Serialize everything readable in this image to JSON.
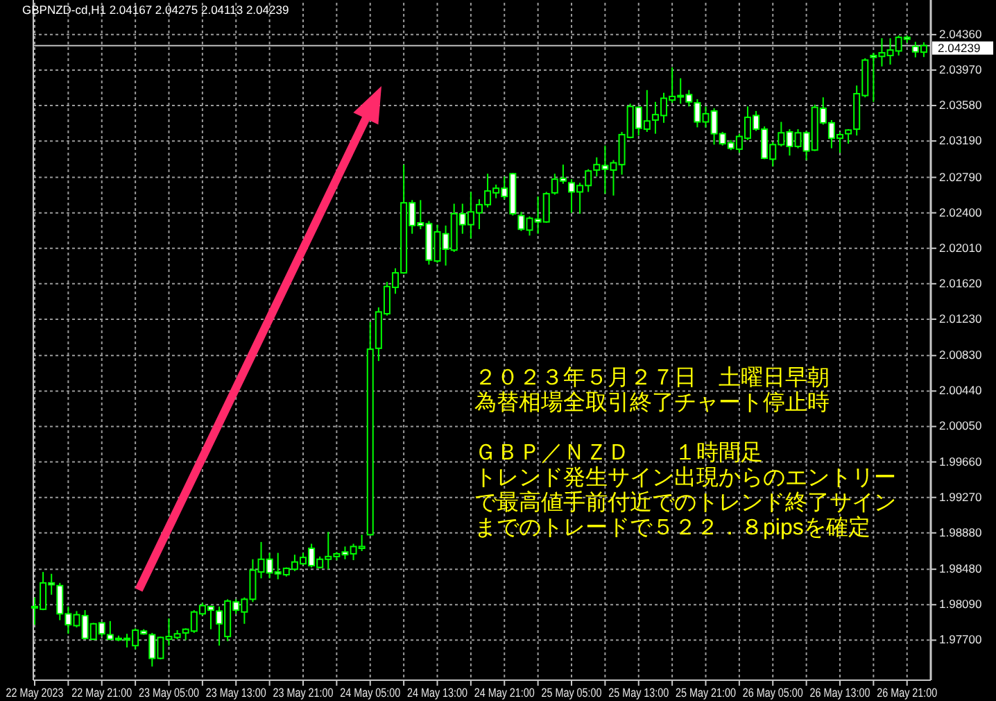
{
  "chart_data": {
    "type": "candlestick",
    "title": "GBPNZD-cd,H1  2.04167 2.04275 2.04113 2.04239",
    "color": "#00ff00",
    "x": [
      "2023-05-22T13:00",
      "2023-05-22T14:00",
      "2023-05-22T15:00",
      "2023-05-22T16:00",
      "2023-05-22T17:00",
      "2023-05-22T18:00",
      "2023-05-22T19:00",
      "2023-05-22T20:00",
      "2023-05-22T21:00",
      "2023-05-22T22:00",
      "2023-05-22T23:00",
      "2023-05-23T00:00",
      "2023-05-23T01:00",
      "2023-05-23T02:00",
      "2023-05-23T03:00",
      "2023-05-23T04:00",
      "2023-05-23T05:00",
      "2023-05-23T06:00",
      "2023-05-23T07:00",
      "2023-05-23T08:00",
      "2023-05-23T09:00",
      "2023-05-23T10:00",
      "2023-05-23T11:00",
      "2023-05-23T12:00",
      "2023-05-23T13:00",
      "2023-05-23T14:00",
      "2023-05-23T15:00",
      "2023-05-23T16:00",
      "2023-05-23T17:00",
      "2023-05-23T18:00",
      "2023-05-23T19:00",
      "2023-05-23T20:00",
      "2023-05-23T21:00",
      "2023-05-23T22:00",
      "2023-05-23T23:00",
      "2023-05-24T00:00",
      "2023-05-24T01:00",
      "2023-05-24T02:00",
      "2023-05-24T03:00",
      "2023-05-24T04:00",
      "2023-05-24T05:00",
      "2023-05-24T06:00",
      "2023-05-24T07:00",
      "2023-05-24T08:00",
      "2023-05-24T09:00",
      "2023-05-24T10:00",
      "2023-05-24T11:00",
      "2023-05-24T12:00",
      "2023-05-24T13:00",
      "2023-05-24T14:00",
      "2023-05-24T15:00",
      "2023-05-24T16:00",
      "2023-05-24T17:00",
      "2023-05-24T18:00",
      "2023-05-24T19:00",
      "2023-05-24T20:00",
      "2023-05-24T21:00",
      "2023-05-24T22:00",
      "2023-05-24T23:00",
      "2023-05-25T00:00",
      "2023-05-25T01:00",
      "2023-05-25T02:00",
      "2023-05-25T03:00",
      "2023-05-25T04:00",
      "2023-05-25T05:00",
      "2023-05-25T06:00",
      "2023-05-25T07:00",
      "2023-05-25T08:00",
      "2023-05-25T09:00",
      "2023-05-25T10:00",
      "2023-05-25T11:00",
      "2023-05-25T12:00",
      "2023-05-25T13:00",
      "2023-05-25T14:00",
      "2023-05-25T15:00",
      "2023-05-25T16:00",
      "2023-05-25T17:00",
      "2023-05-25T18:00",
      "2023-05-25T19:00",
      "2023-05-25T20:00",
      "2023-05-25T21:00",
      "2023-05-25T22:00",
      "2023-05-25T23:00",
      "2023-05-26T00:00",
      "2023-05-26T01:00",
      "2023-05-26T02:00",
      "2023-05-26T03:00",
      "2023-05-26T04:00",
      "2023-05-26T05:00",
      "2023-05-26T06:00",
      "2023-05-26T07:00",
      "2023-05-26T08:00",
      "2023-05-26T09:00",
      "2023-05-26T10:00",
      "2023-05-26T11:00",
      "2023-05-26T12:00",
      "2023-05-26T13:00",
      "2023-05-26T14:00",
      "2023-05-26T15:00",
      "2023-05-26T16:00",
      "2023-05-26T17:00",
      "2023-05-26T18:00",
      "2023-05-26T19:00",
      "2023-05-26T20:00",
      "2023-05-26T21:00",
      "2023-05-26T22:00",
      "2023-05-26T23:00"
    ],
    "ohlc": [
      [
        1.9807,
        1.9817,
        1.9787,
        1.9807
      ],
      [
        1.9804,
        1.9845,
        1.9803,
        1.9833
      ],
      [
        1.9833,
        1.9843,
        1.982,
        1.9831
      ],
      [
        1.983,
        1.9833,
        1.9792,
        1.9799
      ],
      [
        1.9799,
        1.9807,
        1.9777,
        1.9787
      ],
      [
        1.9786,
        1.9802,
        1.9784,
        1.9798
      ],
      [
        1.9797,
        1.9803,
        1.9771,
        1.9772
      ],
      [
        1.9771,
        1.9789,
        1.977,
        1.9788
      ],
      [
        1.9789,
        1.979,
        1.9774,
        1.9777
      ],
      [
        1.9776,
        1.9791,
        1.977,
        1.9771
      ],
      [
        1.9772,
        1.9775,
        1.9769,
        1.9771
      ],
      [
        1.9772,
        1.9777,
        1.9762,
        1.9771
      ],
      [
        1.9764,
        1.9783,
        1.976,
        1.9781
      ],
      [
        1.978,
        1.9782,
        1.9776,
        1.9777
      ],
      [
        1.9776,
        1.9778,
        1.9741,
        1.975
      ],
      [
        1.975,
        1.9774,
        1.9749,
        1.9773
      ],
      [
        1.9771,
        1.9794,
        1.9764,
        1.9774
      ],
      [
        1.9773,
        1.9781,
        1.9771,
        1.9777
      ],
      [
        1.9778,
        1.9783,
        1.977,
        1.9782
      ],
      [
        1.978,
        1.9803,
        1.9778,
        1.9801
      ],
      [
        1.9799,
        1.9811,
        1.9797,
        1.9808
      ],
      [
        1.9807,
        1.9808,
        1.9782,
        1.9803
      ],
      [
        1.9802,
        1.9807,
        1.9764,
        1.9788
      ],
      [
        1.9774,
        1.9815,
        1.9769,
        1.9813
      ],
      [
        1.9812,
        1.9815,
        1.9799,
        1.9803
      ],
      [
        1.9801,
        1.9817,
        1.9788,
        1.9815
      ],
      [
        1.9815,
        1.9859,
        1.9812,
        1.9847
      ],
      [
        1.9845,
        1.9878,
        1.9838,
        1.9859
      ],
      [
        1.9859,
        1.9866,
        1.9838,
        1.9844
      ],
      [
        1.9845,
        1.9866,
        1.9837,
        1.9843
      ],
      [
        1.9842,
        1.985,
        1.984,
        1.9849
      ],
      [
        1.9848,
        1.9864,
        1.9846,
        1.9856
      ],
      [
        1.9854,
        1.9866,
        1.9853,
        1.9861
      ],
      [
        1.9871,
        1.9876,
        1.985,
        1.9852
      ],
      [
        1.985,
        1.9862,
        1.9849,
        1.9859
      ],
      [
        1.9859,
        1.9889,
        1.9848,
        1.9862
      ],
      [
        1.9862,
        1.9867,
        1.9858,
        1.9865
      ],
      [
        1.9867,
        1.9873,
        1.9859,
        1.9864
      ],
      [
        1.9865,
        1.9876,
        1.9858,
        1.9873
      ],
      [
        1.9871,
        1.9886,
        1.9868,
        1.9873
      ],
      [
        1.9886,
        2.012,
        1.9885,
        2.009
      ],
      [
        2.0091,
        2.0136,
        2.0077,
        2.0131
      ],
      [
        2.0129,
        2.0164,
        2.0127,
        2.0159
      ],
      [
        2.0158,
        2.0179,
        2.0151,
        2.0174
      ],
      [
        2.0174,
        2.0293,
        2.0173,
        2.0251
      ],
      [
        2.0251,
        2.0254,
        2.0217,
        2.0226
      ],
      [
        2.0229,
        2.0254,
        2.0222,
        2.0226
      ],
      [
        2.0228,
        2.0231,
        2.0183,
        2.0188
      ],
      [
        2.0187,
        2.0227,
        2.0185,
        2.0219
      ],
      [
        2.0217,
        2.0226,
        2.0182,
        2.02
      ],
      [
        2.0199,
        2.025,
        2.0197,
        2.0239
      ],
      [
        2.0239,
        2.025,
        2.0217,
        2.0227
      ],
      [
        2.0227,
        2.0263,
        2.0212,
        2.0241
      ],
      [
        2.024,
        2.0255,
        2.0222,
        2.0249
      ],
      [
        2.0249,
        2.0283,
        2.0246,
        2.0264
      ],
      [
        2.0262,
        2.0271,
        2.0256,
        2.0267
      ],
      [
        2.0267,
        2.028,
        2.0255,
        2.0258
      ],
      [
        2.0283,
        2.0284,
        2.0237,
        2.0239
      ],
      [
        2.0237,
        2.0241,
        2.022,
        2.0222
      ],
      [
        2.0221,
        2.0236,
        2.0215,
        2.0234
      ],
      [
        2.0233,
        2.0258,
        2.0217,
        2.023
      ],
      [
        2.023,
        2.0263,
        2.0229,
        2.0261
      ],
      [
        2.0262,
        2.0283,
        2.026,
        2.0277
      ],
      [
        2.0278,
        2.0293,
        2.0272,
        2.0275
      ],
      [
        2.0273,
        2.0277,
        2.024,
        2.0263
      ],
      [
        2.0263,
        2.0273,
        2.0239,
        2.027
      ],
      [
        2.027,
        2.0288,
        2.0263,
        2.0286
      ],
      [
        2.0287,
        2.0301,
        2.028,
        2.0293
      ],
      [
        2.0292,
        2.0314,
        2.0261,
        2.0288
      ],
      [
        2.0287,
        2.0298,
        2.0259,
        2.0295
      ],
      [
        2.0293,
        2.0329,
        2.0282,
        2.0326
      ],
      [
        2.0323,
        2.036,
        2.0322,
        2.0357
      ],
      [
        2.0356,
        2.0357,
        2.0325,
        2.0333
      ],
      [
        2.0332,
        2.0375,
        2.0329,
        2.0341
      ],
      [
        2.0342,
        2.0362,
        2.0327,
        2.0348
      ],
      [
        2.0347,
        2.0372,
        2.0339,
        2.0366
      ],
      [
        2.0364,
        2.04,
        2.0361,
        2.0368
      ],
      [
        2.0369,
        2.0388,
        2.036,
        2.0369
      ],
      [
        2.037,
        2.0375,
        2.0357,
        2.0362
      ],
      [
        2.0361,
        2.0365,
        2.0334,
        2.034
      ],
      [
        2.034,
        2.0357,
        2.0334,
        2.0349
      ],
      [
        2.0352,
        2.0355,
        2.0315,
        2.0327
      ],
      [
        2.0327,
        2.0329,
        2.0314,
        2.0316
      ],
      [
        2.0317,
        2.032,
        2.0309,
        2.0311
      ],
      [
        2.031,
        2.0327,
        2.0306,
        2.0324
      ],
      [
        2.0322,
        2.0357,
        2.032,
        2.0345
      ],
      [
        2.0347,
        2.0352,
        2.033,
        2.0332
      ],
      [
        2.0332,
        2.0335,
        2.0299,
        2.03
      ],
      [
        2.0299,
        2.0318,
        2.0291,
        2.0315
      ],
      [
        2.0315,
        2.034,
        2.0313,
        2.0328
      ],
      [
        2.0329,
        2.0332,
        2.0303,
        2.0313
      ],
      [
        2.0313,
        2.0332,
        2.0311,
        2.0328
      ],
      [
        2.0328,
        2.033,
        2.0298,
        2.0308
      ],
      [
        2.0309,
        2.0359,
        2.0308,
        2.0356
      ],
      [
        2.0355,
        2.0367,
        2.0337,
        2.0339
      ],
      [
        2.0339,
        2.0342,
        2.0311,
        2.0322
      ],
      [
        2.0322,
        2.0329,
        2.0306,
        2.0326
      ],
      [
        2.0327,
        2.0332,
        2.0316,
        2.0331
      ],
      [
        2.0332,
        2.038,
        2.0325,
        2.0371
      ],
      [
        2.0369,
        2.041,
        2.0367,
        2.0408
      ],
      [
        2.0413,
        2.0416,
        2.0362,
        2.0411
      ],
      [
        2.0412,
        2.0432,
        2.0401,
        2.0416
      ],
      [
        2.0413,
        2.0432,
        2.0403,
        2.0419
      ],
      [
        2.0418,
        2.0435,
        2.0413,
        2.0433
      ],
      [
        2.0433,
        2.0435,
        2.0427,
        2.0431
      ],
      [
        2.0423,
        2.0428,
        2.0411,
        2.0417
      ],
      [
        2.04167,
        2.04275,
        2.04113,
        2.04239
      ]
    ],
    "xlim": [
      "2023-05-22T12:50",
      "2023-05-26T23:50"
    ],
    "xticks": [
      {
        "value": "2023-05-22T13:00",
        "label": "22 May 2023"
      },
      {
        "value": "2023-05-22T17:00",
        "label": null
      },
      {
        "value": "2023-05-22T21:00",
        "label": "22 May 21:00"
      },
      {
        "value": "2023-05-23T01:00",
        "label": null
      },
      {
        "value": "2023-05-23T05:00",
        "label": "23 May 05:00"
      },
      {
        "value": "2023-05-23T09:00",
        "label": null
      },
      {
        "value": "2023-05-23T13:00",
        "label": "23 May 13:00"
      },
      {
        "value": "2023-05-23T17:00",
        "label": null
      },
      {
        "value": "2023-05-23T21:00",
        "label": "23 May 21:00"
      },
      {
        "value": "2023-05-24T01:00",
        "label": null
      },
      {
        "value": "2023-05-24T05:00",
        "label": "24 May 05:00"
      },
      {
        "value": "2023-05-24T09:00",
        "label": null
      },
      {
        "value": "2023-05-24T13:00",
        "label": "24 May 13:00"
      },
      {
        "value": "2023-05-24T17:00",
        "label": null
      },
      {
        "value": "2023-05-24T21:00",
        "label": "24 May 21:00"
      },
      {
        "value": "2023-05-25T01:00",
        "label": null
      },
      {
        "value": "2023-05-25T05:00",
        "label": "25 May 05:00"
      },
      {
        "value": "2023-05-25T09:00",
        "label": null
      },
      {
        "value": "2023-05-25T13:00",
        "label": "25 May 13:00"
      },
      {
        "value": "2023-05-25T17:00",
        "label": null
      },
      {
        "value": "2023-05-25T21:00",
        "label": "25 May 21:00"
      },
      {
        "value": "2023-05-26T01:00",
        "label": null
      },
      {
        "value": "2023-05-26T05:00",
        "label": "26 May 05:00"
      },
      {
        "value": "2023-05-26T09:00",
        "label": null
      },
      {
        "value": "2023-05-26T13:00",
        "label": "26 May 13:00"
      },
      {
        "value": "2023-05-26T17:00",
        "label": null
      },
      {
        "value": "2023-05-26T21:00",
        "label": "26 May 21:00"
      }
    ],
    "ylim": [
      1.9726,
      2.0471
    ],
    "yticks": [
      {
        "value": 1.977,
        "label": "1.97700"
      },
      {
        "value": 1.9809,
        "label": "1.98090"
      },
      {
        "value": 1.9848,
        "label": "1.98480"
      },
      {
        "value": 1.9888,
        "label": "1.98880"
      },
      {
        "value": 1.9927,
        "label": "1.99270"
      },
      {
        "value": 1.9966,
        "label": "1.99660"
      },
      {
        "value": 2.0005,
        "label": "2.00050"
      },
      {
        "value": 2.0044,
        "label": "2.00440"
      },
      {
        "value": 2.0083,
        "label": "2.00830"
      },
      {
        "value": 2.0123,
        "label": "2.01230"
      },
      {
        "value": 2.0162,
        "label": "2.01620"
      },
      {
        "value": 2.0201,
        "label": "2.02010"
      },
      {
        "value": 2.024,
        "label": "2.02400"
      },
      {
        "value": 2.0279,
        "label": "2.02790"
      },
      {
        "value": 2.0319,
        "label": "2.03190"
      },
      {
        "value": 2.0358,
        "label": "2.03580"
      },
      {
        "value": 2.0397,
        "label": "2.03970"
      },
      {
        "value": 2.0436,
        "label": "2.04360"
      }
    ],
    "grid": true,
    "ref_lines": [
      {
        "axis": "y",
        "value": 2.04239,
        "label": "2.04239",
        "color": "#c0c0c0"
      }
    ],
    "annotations": [
      "２０２３年５月２７日　土曜日早朝",
      "為替相場全取引終了チャート停止時",
      "ＧＢＰ／ＮＺＤ　　１時間足",
      "トレンド発生サイン出現からのエントリーで最高値手前付近でのトレンド終了サインまでのトレードで５２２．８pipsを確定"
    ]
  }
}
